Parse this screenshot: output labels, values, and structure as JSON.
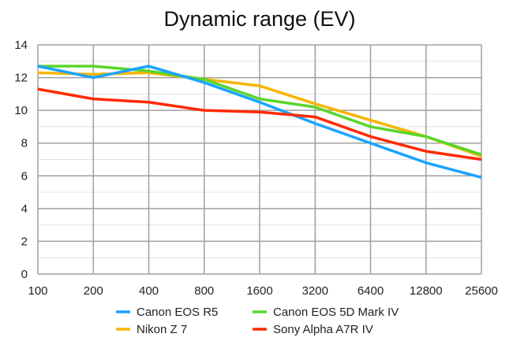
{
  "chart_data": {
    "type": "line",
    "title": "Dynamic range (EV)",
    "xlabel": "",
    "ylabel": "",
    "categories": [
      "100",
      "200",
      "400",
      "800",
      "1600",
      "3200",
      "6400",
      "12800",
      "25600"
    ],
    "ylim": [
      0,
      14
    ],
    "yticks": [
      "0",
      "2",
      "4",
      "6",
      "8",
      "10",
      "12",
      "14"
    ],
    "grid": true,
    "legend_position": "bottom",
    "series": [
      {
        "name": "Canon EOS R5",
        "color": "#1aa3ff",
        "values": [
          12.7,
          12.0,
          12.7,
          11.7,
          10.5,
          9.2,
          8.0,
          6.8,
          5.9
        ]
      },
      {
        "name": "Canon EOS 5D Mark IV",
        "color": "#5ad62a",
        "values": [
          12.7,
          12.7,
          12.4,
          11.9,
          10.7,
          10.2,
          9.0,
          8.4,
          7.3
        ]
      },
      {
        "name": "Nikon Z 7",
        "color": "#f7b500",
        "values": [
          12.3,
          12.2,
          12.3,
          11.9,
          11.5,
          10.4,
          9.4,
          8.4,
          7.2
        ]
      },
      {
        "name": "Sony Alpha A7R IV",
        "color": "#ff2a00",
        "values": [
          11.3,
          10.7,
          10.5,
          10.0,
          9.9,
          9.6,
          8.4,
          7.5,
          7.0
        ]
      }
    ]
  }
}
